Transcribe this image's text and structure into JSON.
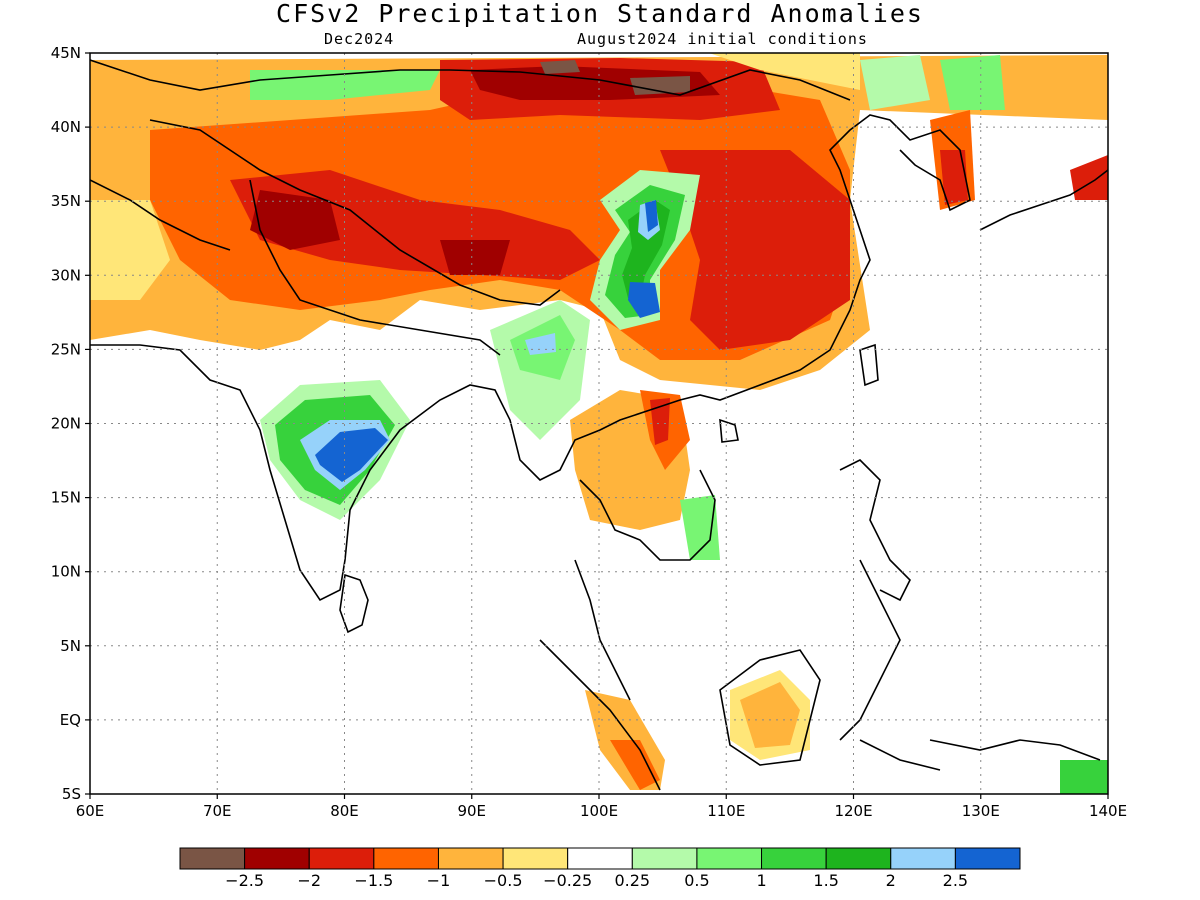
{
  "title": "CFSv2 Precipitation Standard Anomalies",
  "forecast_month": "Dec2024",
  "initial_conditions": "August2024 initial conditions",
  "map": {
    "lon_range": [
      60,
      140
    ],
    "lat_range": [
      -5,
      45
    ],
    "lon_ticks": [
      {
        "value": 60,
        "label": "60E"
      },
      {
        "value": 70,
        "label": "70E"
      },
      {
        "value": 80,
        "label": "80E"
      },
      {
        "value": 90,
        "label": "90E"
      },
      {
        "value": 100,
        "label": "100E"
      },
      {
        "value": 110,
        "label": "110E"
      },
      {
        "value": 120,
        "label": "120E"
      },
      {
        "value": 130,
        "label": "130E"
      },
      {
        "value": 140,
        "label": "140E"
      }
    ],
    "lat_ticks": [
      {
        "value": 45,
        "label": "45N"
      },
      {
        "value": 40,
        "label": "40N"
      },
      {
        "value": 35,
        "label": "35N"
      },
      {
        "value": 30,
        "label": "30N"
      },
      {
        "value": 25,
        "label": "25N"
      },
      {
        "value": 20,
        "label": "20N"
      },
      {
        "value": 15,
        "label": "15N"
      },
      {
        "value": 10,
        "label": "10N"
      },
      {
        "value": 5,
        "label": "5N"
      },
      {
        "value": 0,
        "label": "EQ"
      },
      {
        "value": -5,
        "label": "5S"
      }
    ],
    "grid": "dotted",
    "anomaly_regions": [
      {
        "category": "above_2",
        "lon": [
          98,
          110
        ],
        "lat": [
          22,
          36
        ]
      },
      {
        "category": "below_1",
        "lon": [
          106,
          123
        ],
        "lat": [
          22,
          40
        ]
      },
      {
        "category": "below_2",
        "lon": [
          75,
          110
        ],
        "lat": [
          28,
          45
        ]
      },
      {
        "category": "above_2",
        "lon": [
          73,
          86
        ],
        "lat": [
          14,
          22
        ]
      },
      {
        "category": "below_0_5",
        "lon": [
          97,
          108
        ],
        "lat": [
          11,
          22
        ]
      },
      {
        "category": "below_0_5",
        "lon": [
          108,
          118
        ],
        "lat": [
          -2,
          5
        ]
      },
      {
        "category": "below_1",
        "lon": [
          99,
          106
        ],
        "lat": [
          -5,
          2
        ]
      }
    ]
  },
  "colorbar": {
    "colors": [
      "#7a5545",
      "#a00000",
      "#dc1e0a",
      "#ff6400",
      "#ffb43c",
      "#ffe678",
      "#ffffff",
      "#b4faaa",
      "#78f573",
      "#37d23c",
      "#1eb41e",
      "#96d2fa",
      "#1464d2"
    ],
    "labels": [
      "−2.5",
      "−2",
      "−1.5",
      "−1",
      "−0.5",
      "−0.25",
      "0.25",
      "0.5",
      "1",
      "1.5",
      "2",
      "2.5"
    ]
  }
}
